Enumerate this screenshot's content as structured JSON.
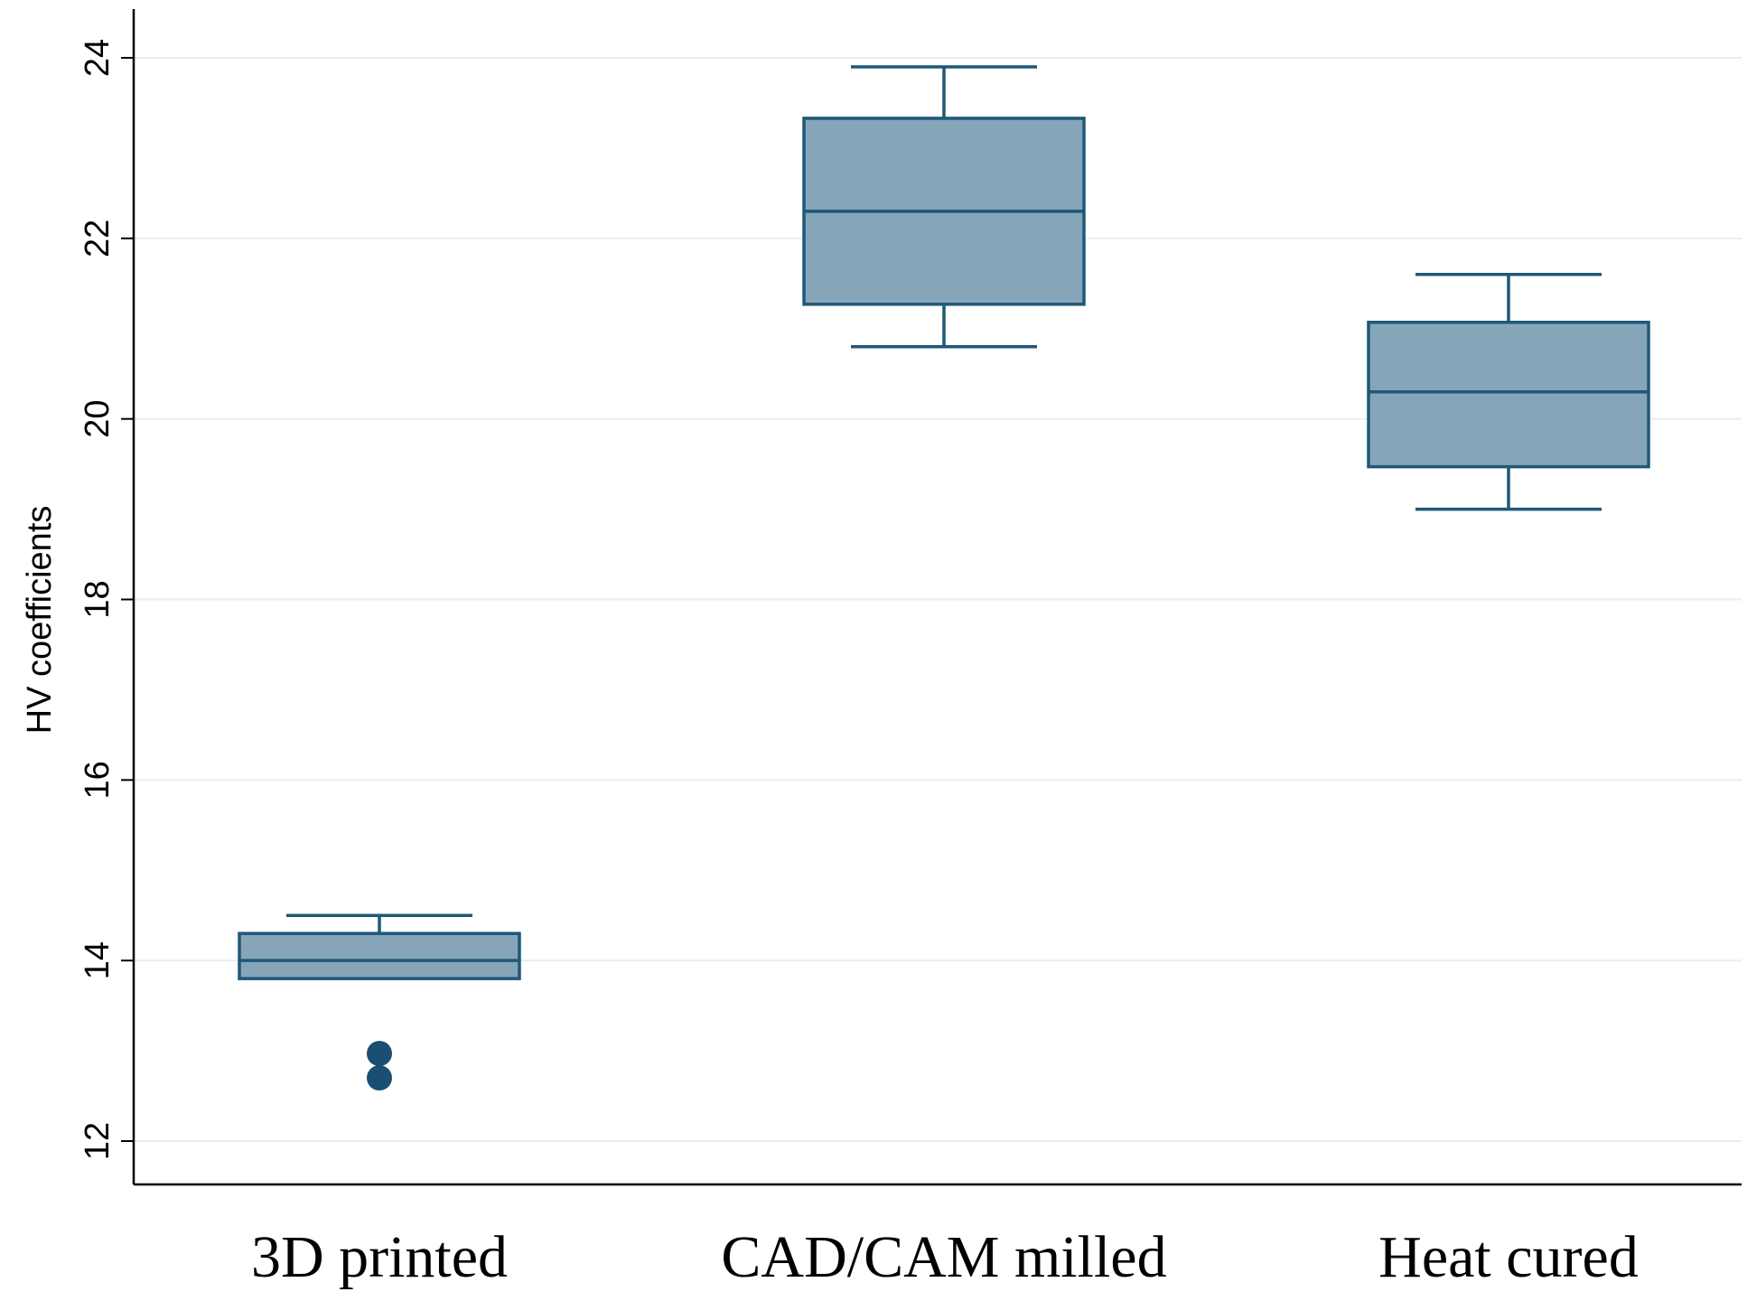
{
  "chart_data": {
    "type": "box",
    "title": "",
    "xlabel": "",
    "ylabel": "HV coefficients",
    "ylim": [
      11.5,
      24.5
    ],
    "yticks": [
      12,
      14,
      16,
      18,
      20,
      22,
      24
    ],
    "grid": true,
    "categories": [
      "3D printed",
      "CAD/CAM milled",
      "Heat cured"
    ],
    "boxes": [
      {
        "category": "3D printed",
        "whisker_low": 13.8,
        "q1": 13.8,
        "median": 14.0,
        "q3": 14.3,
        "whisker_high": 14.5,
        "outliers": [
          12.97,
          12.7
        ]
      },
      {
        "category": "CAD/CAM milled",
        "whisker_low": 20.8,
        "q1": 21.27,
        "median": 22.3,
        "q3": 23.33,
        "whisker_high": 23.9,
        "outliers": []
      },
      {
        "category": "Heat cured",
        "whisker_low": 19.0,
        "q1": 19.47,
        "median": 20.3,
        "q3": 21.07,
        "whisker_high": 21.6,
        "outliers": []
      }
    ],
    "colors": {
      "box_fill": "#86a5b9",
      "box_stroke": "#1f5878",
      "outlier": "#1a4e73",
      "grid": "#e6eef2",
      "axis": "#000000"
    }
  }
}
